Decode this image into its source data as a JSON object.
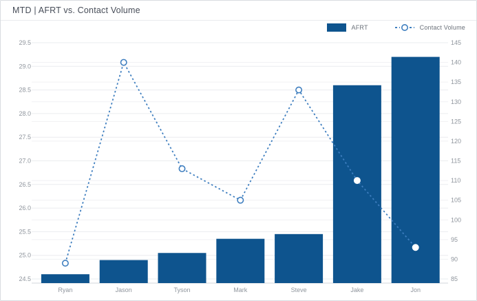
{
  "header": {
    "title": "MTD | AFRT vs. Contact Volume"
  },
  "legend": {
    "afrt_label": "AFRT",
    "contact_volume_label": "Contact Volume"
  },
  "colors": {
    "bar": "#0e548e",
    "line": "#3e7ebf",
    "grid_left": "#eaecef",
    "grid_right": "#f0f1f3",
    "axis_line": "#d2d6db",
    "tick_text": "#8f959d"
  },
  "chart_data": {
    "type": "combo-bar-line",
    "title": "MTD | AFRT vs. Contact Volume",
    "categories": [
      "Ryan",
      "Jason",
      "Tyson",
      "Mark",
      "Steve",
      "Jake",
      "Jon"
    ],
    "series": [
      {
        "name": "AFRT",
        "type": "bar",
        "axis": "left",
        "values": [
          24.6,
          24.9,
          25.05,
          25.35,
          25.45,
          28.6,
          29.2
        ]
      },
      {
        "name": "Contact Volume",
        "type": "line",
        "axis": "right",
        "style": "dashed",
        "marker": "open-circle",
        "values": [
          89,
          140,
          113,
          105,
          133,
          110,
          93
        ]
      }
    ],
    "left_axis": {
      "min": 24.5,
      "max": 29.5,
      "step": 0.5,
      "ticks": [
        "24.5",
        "25.0",
        "25.5",
        "26.0",
        "26.5",
        "27.0",
        "27.5",
        "28.0",
        "28.5",
        "29.0",
        "29.5"
      ]
    },
    "right_axis": {
      "min": 85,
      "max": 145,
      "step": 5,
      "ticks": [
        "85",
        "90",
        "95",
        "100",
        "105",
        "110",
        "115",
        "120",
        "125",
        "130",
        "135",
        "140",
        "145"
      ]
    },
    "grid": true,
    "legend_position": "top-right"
  }
}
